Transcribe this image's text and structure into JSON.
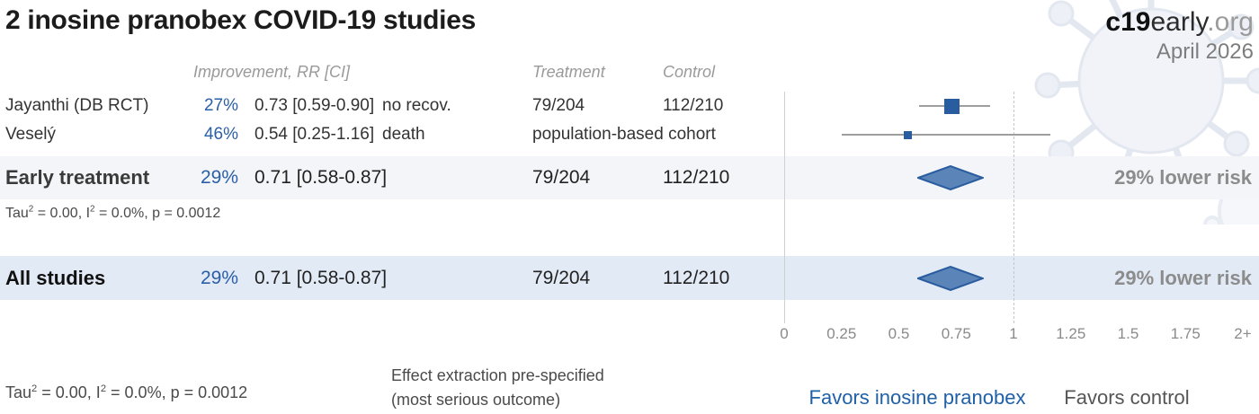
{
  "header": {
    "title": "2 inosine pranobex COVID-19 studies",
    "logo_c19": "c19",
    "logo_early": "early",
    "logo_org": ".org",
    "date": "April 2026"
  },
  "columns": {
    "improvement": "Improvement, RR [CI]",
    "treatment": "Treatment",
    "control": "Control"
  },
  "studies": [
    {
      "name": "Jayanthi (DB RCT)",
      "pct": "27%",
      "rr_ci": "0.73 [0.59-0.90]",
      "outcome": "no recov.",
      "treatment": "79/204",
      "control": "112/210"
    },
    {
      "name": "Veselý",
      "pct": "46%",
      "rr_ci": "0.54 [0.25-1.16]",
      "outcome": "death",
      "treatment": "population-based cohort",
      "control": ""
    }
  ],
  "summaries": [
    {
      "name": "Early treatment",
      "pct": "29%",
      "rr_ci": "0.71 [0.58-0.87]",
      "treatment": "79/204",
      "control": "112/210",
      "risk": "29% lower risk"
    },
    {
      "name": "All studies",
      "pct": "29%",
      "rr_ci": "0.71 [0.58-0.87]",
      "treatment": "79/204",
      "control": "112/210",
      "risk": "29% lower risk"
    }
  ],
  "stats": {
    "tau": "Tau",
    "tau_sup": "2",
    "mid": " = 0.00, I",
    "i_sup": "2",
    "tail": " = 0.0%, p = 0.0012"
  },
  "footer": {
    "effect_line1": "Effect extraction pre-specified",
    "effect_line2": "(most serious outcome)",
    "favors_treatment": "Favors inosine pranobex",
    "favors_control": "Favors control"
  },
  "chart_data": {
    "type": "forest",
    "xlabel_ticks_note": "relative risk scale, 1 = no effect",
    "axis": {
      "ticks": [
        {
          "label": "0",
          "value": 0
        },
        {
          "label": "0.25",
          "value": 0.25
        },
        {
          "label": "0.5",
          "value": 0.5
        },
        {
          "label": "0.75",
          "value": 0.75
        },
        {
          "label": "1",
          "value": 1
        },
        {
          "label": "1.25",
          "value": 1.25
        },
        {
          "label": "1.5",
          "value": 1.5
        },
        {
          "label": "1.75",
          "value": 1.75
        },
        {
          "label": "2+",
          "value": 2
        }
      ],
      "gridline_values": [
        0,
        1
      ],
      "range": [
        0,
        2
      ]
    },
    "points": [
      {
        "id": "jayanthi",
        "label": "Jayanthi (DB RCT)",
        "rr": 0.73,
        "ci": [
          0.59,
          0.9
        ],
        "marker": "square",
        "weight": "large"
      },
      {
        "id": "vesely",
        "label": "Veselý",
        "rr": 0.54,
        "ci": [
          0.25,
          1.16
        ],
        "marker": "square",
        "weight": "small"
      },
      {
        "id": "early",
        "label": "Early treatment",
        "rr": 0.71,
        "ci": [
          0.58,
          0.87
        ],
        "marker": "diamond"
      },
      {
        "id": "all",
        "label": "All studies",
        "rr": 0.71,
        "ci": [
          0.58,
          0.87
        ],
        "marker": "diamond"
      }
    ],
    "colors": {
      "marker": "#2a5d9f",
      "diamond_fill": "#5b84b8",
      "ci_line": "#9e9e9e",
      "pct_blue": "#2b5fa7",
      "favors_blue": "#2060a8"
    }
  }
}
